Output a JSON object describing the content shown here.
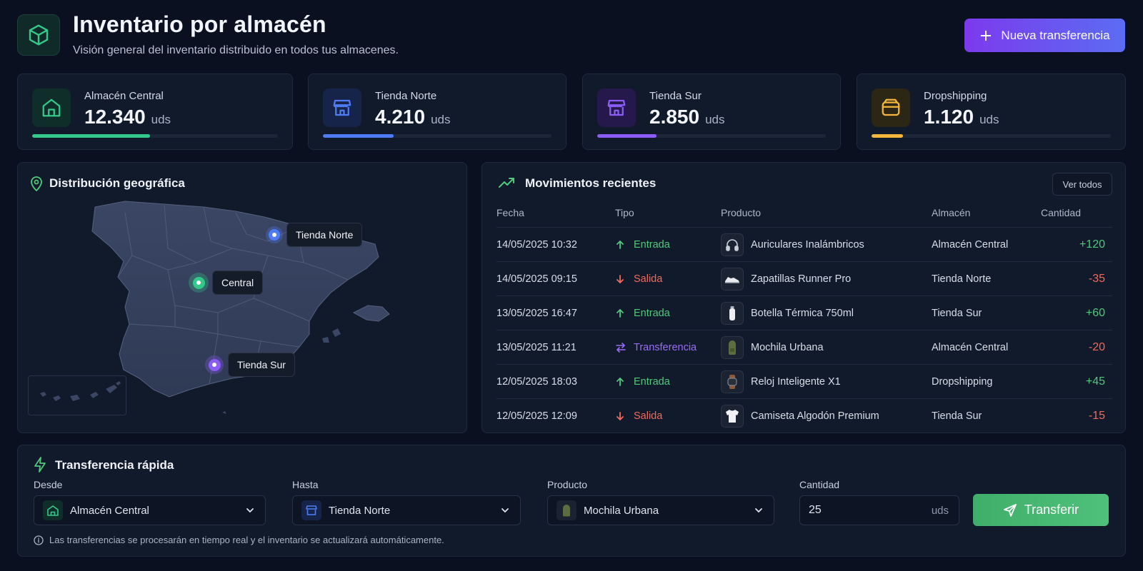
{
  "header": {
    "title": "Inventario por almacén",
    "subtitle": "Visión general del inventario distribuido en todos tus almacenes.",
    "new_transfer_label": "Nueva transferencia"
  },
  "warehouses": [
    {
      "name": "Almacén Central",
      "value": "12.340",
      "unit": "uds",
      "progress": 0.48,
      "color": "#34c98a",
      "icon": "warehouse-icon"
    },
    {
      "name": "Tienda Norte",
      "value": "4.210",
      "unit": "uds",
      "progress": 0.31,
      "color": "#4f7cf5",
      "icon": "store-icon"
    },
    {
      "name": "Tienda Sur",
      "value": "2.850",
      "unit": "uds",
      "progress": 0.26,
      "color": "#8b5cf6",
      "icon": "store-icon"
    },
    {
      "name": "Dropshipping",
      "value": "1.120",
      "unit": "uds",
      "progress": 0.13,
      "color": "#f4b73b",
      "icon": "wallet-icon"
    }
  ],
  "map": {
    "title": "Distribución geográfica",
    "pins": [
      {
        "label": "Tienda Norte",
        "color": "#4f7cf5"
      },
      {
        "label": "Central",
        "color": "#34c98a"
      },
      {
        "label": "Tienda Sur",
        "color": "#8b5cf6"
      }
    ]
  },
  "movements": {
    "title": "Movimientos recientes",
    "view_all_label": "Ver todos",
    "columns": {
      "date": "Fecha",
      "type": "Tipo",
      "product": "Producto",
      "warehouse": "Almacén",
      "qty": "Cantidad"
    },
    "rows": [
      {
        "date": "14/05/2025 10:32",
        "type": "Entrada",
        "product": "Auriculares Inalámbricos",
        "warehouse": "Almacén Central",
        "qty": "+120",
        "icon": "headphones-icon"
      },
      {
        "date": "14/05/2025 09:15",
        "type": "Salida",
        "product": "Zapatillas Runner Pro",
        "warehouse": "Tienda Norte",
        "qty": "-35",
        "icon": "sneaker-icon"
      },
      {
        "date": "13/05/2025 16:47",
        "type": "Entrada",
        "product": "Botella Térmica 750ml",
        "warehouse": "Tienda Sur",
        "qty": "+60",
        "icon": "bottle-icon"
      },
      {
        "date": "13/05/2025 11:21",
        "type": "Transferencia",
        "product": "Mochila Urbana",
        "warehouse": "Almacén Central",
        "qty": "-20",
        "icon": "backpack-icon"
      },
      {
        "date": "12/05/2025 18:03",
        "type": "Entrada",
        "product": "Reloj Inteligente X1",
        "warehouse": "Dropshipping",
        "qty": "+45",
        "icon": "watch-icon"
      },
      {
        "date": "12/05/2025 12:09",
        "type": "Salida",
        "product": "Camiseta Algodón Premium",
        "warehouse": "Tienda Sur",
        "qty": "-15",
        "icon": "tshirt-icon"
      }
    ]
  },
  "quick_transfer": {
    "title": "Transferencia rápida",
    "from_label": "Desde",
    "from_value": "Almacén Central",
    "to_label": "Hasta",
    "to_value": "Tienda Norte",
    "product_label": "Producto",
    "product_value": "Mochila Urbana",
    "qty_label": "Cantidad",
    "qty_value": "25",
    "qty_unit": "uds",
    "submit_label": "Transferir",
    "note": "Las transferencias se procesarán en tiempo real y el inventario se actualizará automáticamente."
  },
  "colors": {
    "in": "#4fc97a",
    "out": "#f06a5d",
    "transfer": "#9a6cf6"
  }
}
